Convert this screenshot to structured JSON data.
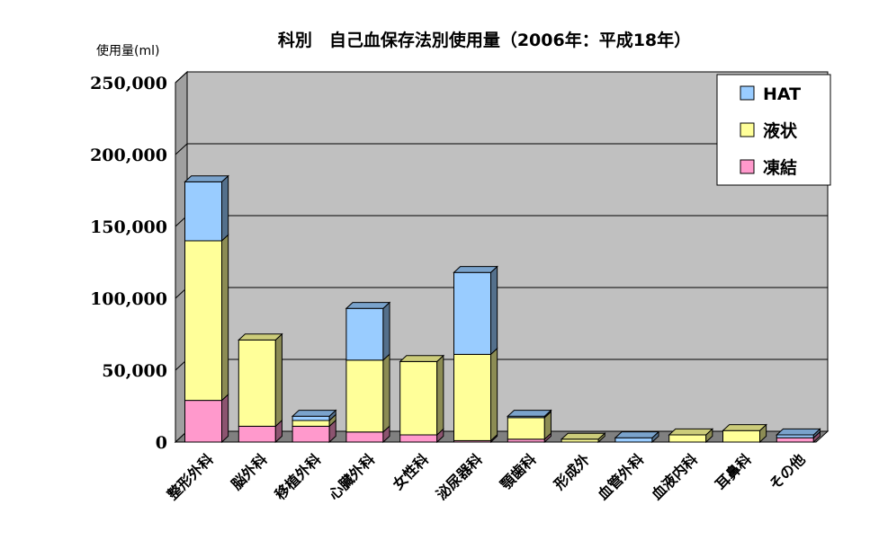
{
  "chart_data": {
    "type": "bar",
    "stacked": true,
    "three_d": true,
    "title": "科別　自己血保存法別使用量（2006年：平成18年）",
    "ylabel": "使用量(ml)",
    "xlabel": "",
    "ylim": [
      0,
      250000
    ],
    "yticks": [
      "0",
      "50,000",
      "100,000",
      "150,000",
      "200,000",
      "250,000"
    ],
    "ytick_values": [
      0,
      50000,
      100000,
      150000,
      200000,
      250000
    ],
    "grid": true,
    "legend_position": "top-right",
    "categories": [
      "整形外科",
      "脳外科",
      "移植外科",
      "心臓外科",
      "女性科",
      "泌尿器科",
      "顎歯科",
      "形成外",
      "血管外科",
      "血液内科",
      "耳鼻科",
      "その他"
    ],
    "series": [
      {
        "name": "凍結",
        "color": "#ff99cc",
        "values": [
          29000,
          11000,
          11000,
          7000,
          5000,
          1000,
          2000,
          0,
          0,
          0,
          0,
          3000
        ]
      },
      {
        "name": "液状",
        "color": "#ffff99",
        "values": [
          111000,
          60000,
          4000,
          50000,
          51000,
          60000,
          15000,
          2000,
          0,
          5000,
          8000,
          0
        ]
      },
      {
        "name": "HAT",
        "color": "#99ccff",
        "values": [
          41000,
          0,
          3000,
          36000,
          0,
          57000,
          1000,
          0,
          3000,
          0,
          0,
          2000
        ]
      }
    ]
  }
}
